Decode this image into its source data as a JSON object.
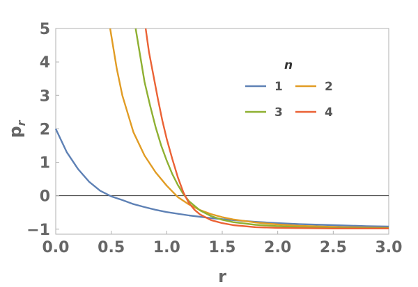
{
  "chart_data": {
    "type": "line",
    "xlabel": "r",
    "ylabel_base": "p",
    "ylabel_sub": "r",
    "xlim": [
      0,
      3.0
    ],
    "ylim": [
      -1.15,
      5.0
    ],
    "grid": false,
    "legend_placement": "upper-right",
    "x_ticks": [
      {
        "value": 0.0,
        "label": "0.0"
      },
      {
        "value": 0.5,
        "label": "0.5"
      },
      {
        "value": 1.0,
        "label": "1.0"
      },
      {
        "value": 1.5,
        "label": "1.5"
      },
      {
        "value": 2.0,
        "label": "2.0"
      },
      {
        "value": 2.5,
        "label": "2.5"
      },
      {
        "value": 3.0,
        "label": "3.0"
      }
    ],
    "y_ticks": [
      {
        "value": -1,
        "label": "−1"
      },
      {
        "value": 0,
        "label": "0"
      },
      {
        "value": 1,
        "label": "1"
      },
      {
        "value": 2,
        "label": "2"
      },
      {
        "value": 3,
        "label": "3"
      },
      {
        "value": 4,
        "label": "4"
      },
      {
        "value": 5,
        "label": "5"
      }
    ],
    "legend_title": "n",
    "series": [
      {
        "name": "1",
        "color": "#5e81b5",
        "points": [
          [
            0.0,
            2.0
          ],
          [
            0.1,
            1.3
          ],
          [
            0.2,
            0.8
          ],
          [
            0.3,
            0.42
          ],
          [
            0.4,
            0.15
          ],
          [
            0.5,
            -0.02
          ],
          [
            0.6,
            -0.13
          ],
          [
            0.7,
            -0.25
          ],
          [
            0.8,
            -0.34
          ],
          [
            0.9,
            -0.42
          ],
          [
            1.0,
            -0.49
          ],
          [
            1.2,
            -0.59
          ],
          [
            1.4,
            -0.67
          ],
          [
            1.6,
            -0.73
          ],
          [
            1.8,
            -0.78
          ],
          [
            2.0,
            -0.82
          ],
          [
            2.2,
            -0.85
          ],
          [
            2.4,
            -0.87
          ],
          [
            2.6,
            -0.89
          ],
          [
            2.8,
            -0.91
          ],
          [
            3.0,
            -0.92
          ]
        ]
      },
      {
        "name": "2",
        "color": "#e19c24",
        "points": [
          [
            0.49,
            5.0
          ],
          [
            0.55,
            3.8
          ],
          [
            0.6,
            3.0
          ],
          [
            0.7,
            1.9
          ],
          [
            0.8,
            1.2
          ],
          [
            0.9,
            0.7
          ],
          [
            1.0,
            0.3
          ],
          [
            1.1,
            -0.04
          ],
          [
            1.2,
            -0.26
          ],
          [
            1.3,
            -0.43
          ],
          [
            1.4,
            -0.55
          ],
          [
            1.5,
            -0.64
          ],
          [
            1.6,
            -0.71
          ],
          [
            1.8,
            -0.8
          ],
          [
            2.0,
            -0.86
          ],
          [
            2.2,
            -0.9
          ],
          [
            2.4,
            -0.92
          ],
          [
            2.6,
            -0.94
          ],
          [
            2.8,
            -0.95
          ],
          [
            3.0,
            -0.96
          ]
        ]
      },
      {
        "name": "3",
        "color": "#8fb032",
        "points": [
          [
            0.72,
            5.0
          ],
          [
            0.76,
            4.2
          ],
          [
            0.8,
            3.4
          ],
          [
            0.85,
            2.7
          ],
          [
            0.9,
            2.05
          ],
          [
            0.95,
            1.5
          ],
          [
            1.0,
            1.05
          ],
          [
            1.05,
            0.65
          ],
          [
            1.1,
            0.32
          ],
          [
            1.15,
            0.05
          ],
          [
            1.2,
            -0.16
          ],
          [
            1.3,
            -0.44
          ],
          [
            1.4,
            -0.61
          ],
          [
            1.5,
            -0.72
          ],
          [
            1.6,
            -0.79
          ],
          [
            1.8,
            -0.87
          ],
          [
            2.0,
            -0.91
          ],
          [
            2.2,
            -0.94
          ],
          [
            2.5,
            -0.96
          ],
          [
            3.0,
            -0.97
          ]
        ]
      },
      {
        "name": "4",
        "color": "#eb6235",
        "points": [
          [
            0.81,
            5.0
          ],
          [
            0.84,
            4.3
          ],
          [
            0.88,
            3.6
          ],
          [
            0.92,
            2.9
          ],
          [
            0.96,
            2.25
          ],
          [
            1.0,
            1.7
          ],
          [
            1.05,
            1.1
          ],
          [
            1.1,
            0.55
          ],
          [
            1.15,
            0.1
          ],
          [
            1.2,
            -0.22
          ],
          [
            1.25,
            -0.42
          ],
          [
            1.3,
            -0.56
          ],
          [
            1.4,
            -0.73
          ],
          [
            1.5,
            -0.82
          ],
          [
            1.6,
            -0.88
          ],
          [
            1.8,
            -0.94
          ],
          [
            2.0,
            -0.96
          ],
          [
            2.5,
            -0.98
          ],
          [
            3.0,
            -0.98
          ]
        ]
      }
    ]
  }
}
